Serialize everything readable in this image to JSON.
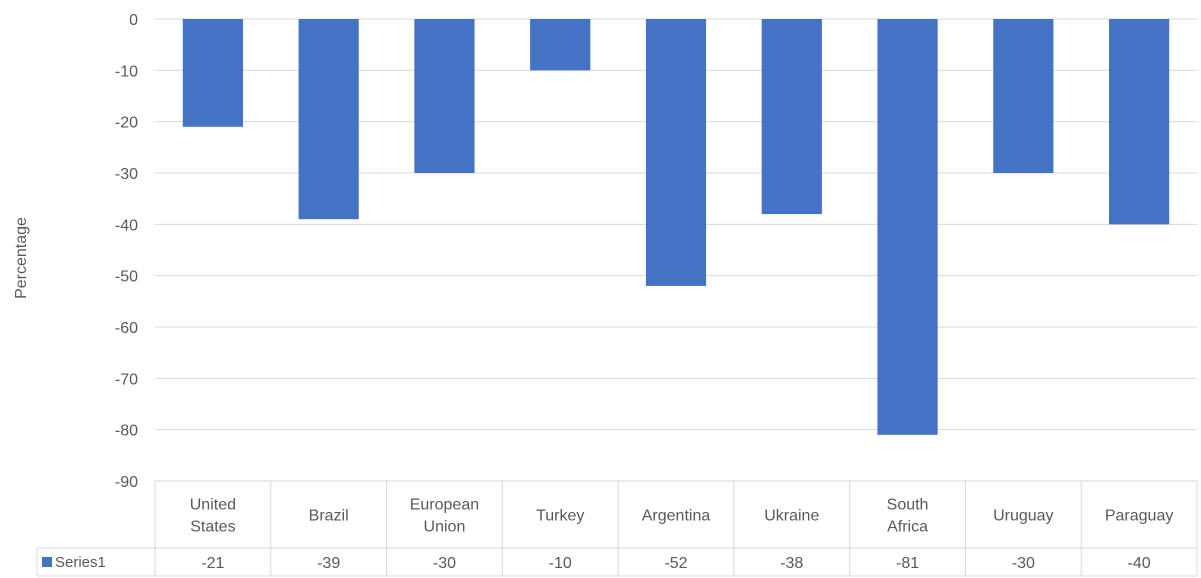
{
  "chart_data": {
    "type": "bar",
    "title": "",
    "xlabel": "",
    "ylabel": "Percentage",
    "ylim": [
      -90,
      0
    ],
    "yticks": [
      0,
      -10,
      -20,
      -30,
      -40,
      -50,
      -60,
      -70,
      -80,
      -90
    ],
    "grid": true,
    "data_table": true,
    "categories": [
      [
        "United",
        "States"
      ],
      [
        "Brazil"
      ],
      [
        "European",
        "Union"
      ],
      [
        "Turkey"
      ],
      [
        "Argentina"
      ],
      [
        "Ukraine"
      ],
      [
        "South",
        "Africa"
      ],
      [
        "Uruguay"
      ],
      [
        "Paraguay"
      ]
    ],
    "series": [
      {
        "name": "Series1",
        "color": "#4472C4",
        "values": [
          -21,
          -39,
          -30,
          -10,
          -52,
          -38,
          -81,
          -30,
          -40
        ],
        "labels": [
          "-21",
          "-39",
          "-30",
          "-10",
          "-52",
          "-38",
          "-81",
          "-30",
          "-40"
        ]
      }
    ]
  }
}
